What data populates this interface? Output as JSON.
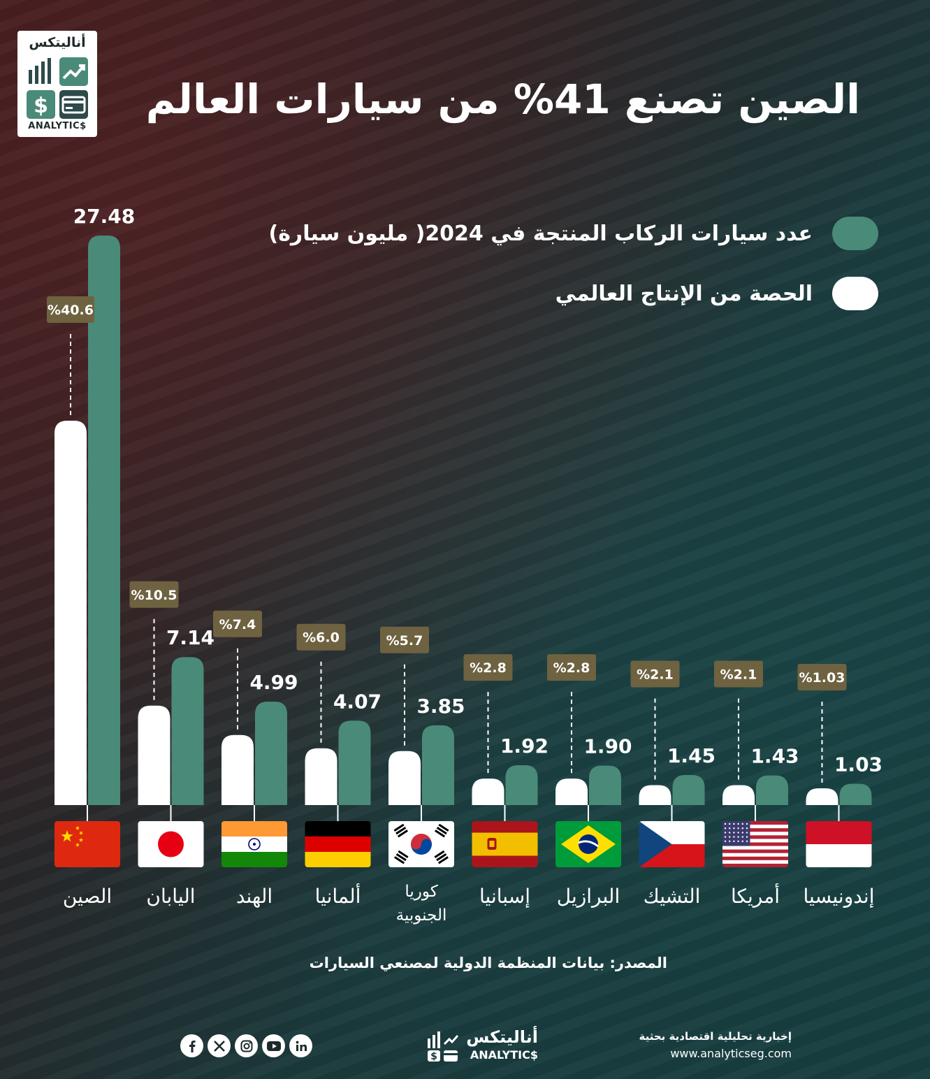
{
  "title": "الصين تصنع 41% من سيارات العالم",
  "logo": {
    "arabic": "أناليتكس",
    "latin": "ANALYTIC$"
  },
  "legend": {
    "production": "عدد سيارات الركاب المنتجة في 2024( مليون سيارة)",
    "share": "الحصة من الإنتاج العالمي"
  },
  "colors": {
    "production": "#4a8a78",
    "share": "#ffffff",
    "badge": "#6e6240"
  },
  "chart_data": {
    "type": "bar",
    "categories": [
      "الصين",
      "اليابان",
      "الهند",
      "ألمانيا",
      "كوريا الجنوبية",
      "إسبانيا",
      "البرازيل",
      "التشيك",
      "أمريكا",
      "إندونيسيا"
    ],
    "category_lines": [
      [
        "الصين"
      ],
      [
        "اليابان"
      ],
      [
        "الهند"
      ],
      [
        "ألمانيا"
      ],
      [
        "كوريا",
        "الجنوبية"
      ],
      [
        "إسبانيا"
      ],
      [
        "البرازيل"
      ],
      [
        "التشيك"
      ],
      [
        "أمريكا"
      ],
      [
        "إندونيسيا"
      ]
    ],
    "flags": [
      "china-flag",
      "japan-flag",
      "india-flag",
      "germany-flag",
      "south-korea-flag",
      "spain-flag",
      "brazil-flag",
      "czech-flag",
      "usa-flag",
      "indonesia-flag"
    ],
    "series": [
      {
        "name": "عدد سيارات الركاب المنتجة في 2024( مليون سيارة)",
        "values": [
          27.48,
          7.14,
          4.99,
          4.07,
          3.85,
          1.92,
          1.9,
          1.45,
          1.43,
          1.03
        ],
        "labels": [
          "27.48",
          "7.14",
          "4.99",
          "4.07",
          "3.85",
          "1.92",
          "1.90",
          "1.45",
          "1.43",
          "1.03"
        ]
      },
      {
        "name": "الحصة من الإنتاج العالمي",
        "values": [
          40.6,
          10.5,
          7.4,
          6.0,
          5.7,
          2.8,
          2.8,
          2.1,
          2.1,
          1.03
        ],
        "labels": [
          "%40.6",
          "%10.5",
          "%7.4",
          "%6.0",
          "%5.7",
          "%2.8",
          "%2.8",
          "%2.1",
          "%2.1",
          "%1.03"
        ]
      }
    ]
  },
  "source": "المصدر: بيانات المنظمة الدولية لمصنعي السيارات",
  "footer": {
    "brand_arabic": "أناليتكس",
    "brand_latin": "ANALYTIC$",
    "tagline": "إخبارية تحليلية اقتصادية بحثية",
    "url": "www.analyticseg.com",
    "social": [
      "facebook-icon",
      "x-icon",
      "instagram-icon",
      "youtube-icon",
      "linkedin-icon"
    ]
  }
}
